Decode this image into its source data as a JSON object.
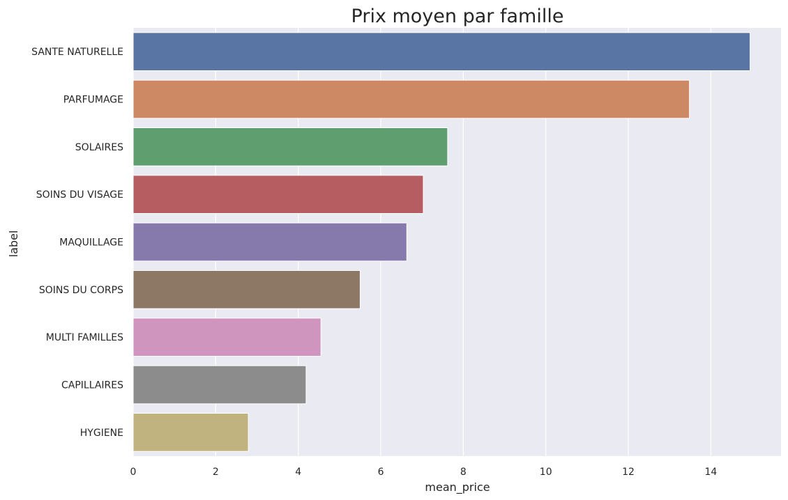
{
  "chart_data": {
    "type": "bar",
    "orientation": "horizontal",
    "title": "Prix moyen par famille",
    "xlabel": "mean_price",
    "ylabel": "label",
    "xlim": [
      0,
      15.7
    ],
    "xticks": [
      0,
      2,
      4,
      6,
      8,
      10,
      12,
      14
    ],
    "grid": true,
    "categories": [
      "SANTE NATURELLE",
      "PARFUMAGE",
      "SOLAIRES",
      "SOINS DU VISAGE",
      "MAQUILLAGE",
      "SOINS DU CORPS",
      "MULTI FAMILLES",
      "CAPILLAIRES",
      "HYGIENE"
    ],
    "values": [
      14.95,
      13.48,
      7.62,
      7.03,
      6.63,
      5.5,
      4.55,
      4.19,
      2.79
    ],
    "colors": [
      "#5975a4",
      "#cc8963",
      "#5f9e6e",
      "#b55d60",
      "#857aab",
      "#8d7866",
      "#d095bf",
      "#8c8c8c",
      "#c1b37f"
    ],
    "plot_background": "#eaeaf2",
    "grid_color": "#ffffff"
  }
}
